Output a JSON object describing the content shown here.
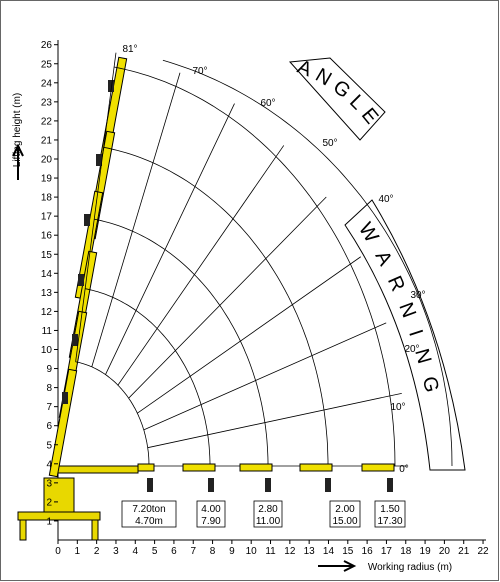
{
  "y_axis": {
    "label": "Lifting height (m)",
    "ticks": [
      1,
      2,
      3,
      4,
      5,
      6,
      7,
      8,
      9,
      10,
      11,
      12,
      13,
      14,
      15,
      16,
      17,
      18,
      19,
      20,
      21,
      22,
      23,
      24,
      25,
      26
    ]
  },
  "x_axis": {
    "label": "Working radius (m)",
    "ticks": [
      0,
      1,
      2,
      3,
      4,
      5,
      6,
      7,
      8,
      9,
      10,
      11,
      12,
      13,
      14,
      15,
      16,
      17,
      18,
      19,
      20,
      21,
      22
    ]
  },
  "angles": [
    "81°",
    "70°",
    "60°",
    "50°",
    "40°",
    "30°",
    "20°",
    "10°",
    "0°"
  ],
  "warnings": {
    "angle": "ANGLE",
    "warning": "WARNING"
  },
  "loads": [
    {
      "load": "7.20ton",
      "radius": "4.70m"
    },
    {
      "load": "4.00",
      "radius": "7.90"
    },
    {
      "load": "2.80",
      "radius": "11.00"
    },
    {
      "load": "2.00",
      "radius": "15.00"
    },
    {
      "load": "1.50",
      "radius": "17.30"
    }
  ]
}
